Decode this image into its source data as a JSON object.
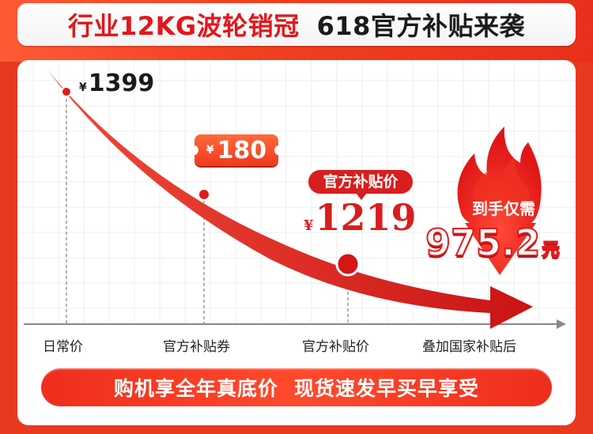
{
  "banner": {
    "left": "行业12KG波轮销冠",
    "right": "618官方补贴来袭"
  },
  "prices": {
    "currency": "¥",
    "daily": "1399",
    "coupon": "180",
    "official_tag": "官方补贴价",
    "official": "1219",
    "final_tag": "到手仅需",
    "final": "975.2",
    "final_unit": "元"
  },
  "axis_labels": [
    "日常价",
    "官方补贴券",
    "官方补贴价",
    "叠加国家补贴后"
  ],
  "slogan": {
    "part1": "购机享全年真底价",
    "part2": "现货速发早买早享受"
  },
  "colors": {
    "brand_red": "#e3161b",
    "accent_orange": "#f0391e",
    "background": "#e8391f"
  },
  "icons": [
    "flame-icon",
    "arrow-icon",
    "coupon-ticket-icon"
  ]
}
